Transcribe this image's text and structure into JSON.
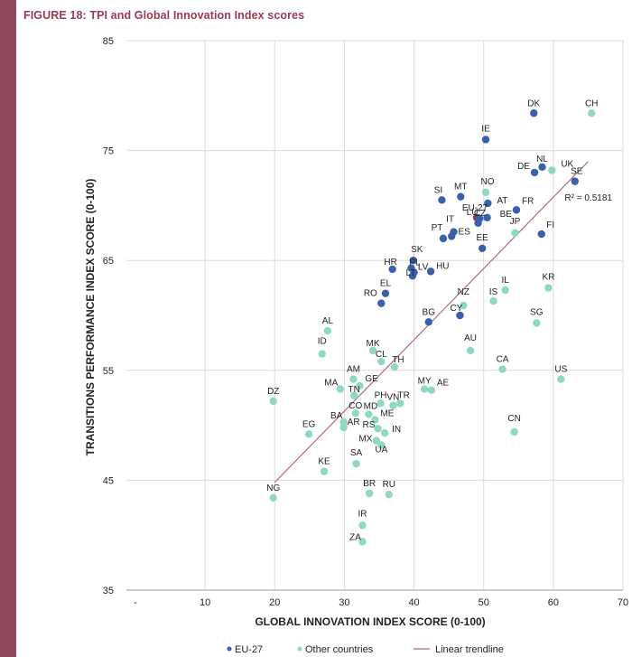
{
  "figure": {
    "title": "FIGURE 18: TPI and Global Innovation Index scores"
  },
  "chart_data": {
    "type": "scatter",
    "xlabel": "GLOBAL INNOVATION INDEX SCORE (0-100)",
    "ylabel": "TRANSITIONS PERFORMANCE INDEX SCORE (0-100)",
    "xlim": [
      0,
      70
    ],
    "ylim": [
      35,
      85
    ],
    "x_ticks": [
      10,
      20,
      30,
      40,
      50,
      60,
      70
    ],
    "x_first_tick_label": "-",
    "y_ticks": [
      35,
      45,
      55,
      65,
      75,
      85
    ],
    "grid": true,
    "legend": [
      "EU-27",
      "Other countries",
      "Linear trendline"
    ],
    "trendline": {
      "x": [
        20,
        65
      ],
      "y": [
        44.8,
        74
      ],
      "label": "R² = 0.5181"
    },
    "colors": {
      "eu": "#3a5fad",
      "other": "#8fd9c0",
      "eu_highlight": "#9c3b4f",
      "trend": "#b36a80"
    },
    "series": [
      {
        "name": "EU-27",
        "points": [
          {
            "label": "DK",
            "x": 57.2,
            "y": 78.4
          },
          {
            "label": "IE",
            "x": 50.3,
            "y": 76.0
          },
          {
            "label": "NL",
            "x": 58.4,
            "y": 73.5
          },
          {
            "label": "DE",
            "x": 57.3,
            "y": 73.0
          },
          {
            "label": "SE",
            "x": 63.1,
            "y": 72.2
          },
          {
            "label": "SI",
            "x": 44.0,
            "y": 70.5
          },
          {
            "label": "MT",
            "x": 46.7,
            "y": 70.8
          },
          {
            "label": "AT",
            "x": 50.6,
            "y": 70.2
          },
          {
            "label": "FR",
            "x": 54.7,
            "y": 69.6
          },
          {
            "label": "EU-27",
            "x": 49.0,
            "y": 68.9,
            "highlight": true
          },
          {
            "label": "LU",
            "x": 49.4,
            "y": 68.8
          },
          {
            "label": "BE",
            "x": 50.5,
            "y": 68.9
          },
          {
            "label": "IT",
            "x": 45.7,
            "y": 67.6
          },
          {
            "label": "CZ",
            "x": 49.2,
            "y": 68.4
          },
          {
            "label": "PT",
            "x": 44.2,
            "y": 67.0
          },
          {
            "label": "ES",
            "x": 45.4,
            "y": 67.2
          },
          {
            "label": "FI",
            "x": 58.3,
            "y": 67.4
          },
          {
            "label": "EE",
            "x": 49.8,
            "y": 66.1
          },
          {
            "label": "SK",
            "x": 39.9,
            "y": 65.0
          },
          {
            "label": "HR",
            "x": 36.9,
            "y": 64.2
          },
          {
            "label": "PL",
            "x": 39.6,
            "y": 64.3
          },
          {
            "label": "LV",
            "x": 40.0,
            "y": 63.9
          },
          {
            "label": "HU",
            "x": 42.4,
            "y": 64.0
          },
          {
            "label": "LT",
            "x": 39.8,
            "y": 63.6
          },
          {
            "label": "EL",
            "x": 35.9,
            "y": 62.0
          },
          {
            "label": "RO",
            "x": 35.3,
            "y": 61.1
          },
          {
            "label": "CY",
            "x": 46.6,
            "y": 60.0
          },
          {
            "label": "BG",
            "x": 42.1,
            "y": 59.4
          }
        ]
      },
      {
        "name": "Other countries",
        "points": [
          {
            "label": "CH",
            "x": 65.5,
            "y": 78.4
          },
          {
            "label": "UK",
            "x": 59.8,
            "y": 73.2
          },
          {
            "label": "NO",
            "x": 50.3,
            "y": 71.2
          },
          {
            "label": "JP",
            "x": 54.5,
            "y": 67.5
          },
          {
            "label": "KR",
            "x": 59.3,
            "y": 62.5
          },
          {
            "label": "IL",
            "x": 53.1,
            "y": 62.3
          },
          {
            "label": "IS",
            "x": 51.4,
            "y": 61.3
          },
          {
            "label": "NZ",
            "x": 47.1,
            "y": 60.9
          },
          {
            "label": "SG",
            "x": 57.6,
            "y": 59.3
          },
          {
            "label": "AL",
            "x": 27.6,
            "y": 58.6
          },
          {
            "label": "AU",
            "x": 48.1,
            "y": 56.8
          },
          {
            "label": "ID",
            "x": 26.8,
            "y": 56.5
          },
          {
            "label": "MK",
            "x": 34.1,
            "y": 56.8
          },
          {
            "label": "CL",
            "x": 35.3,
            "y": 55.8
          },
          {
            "label": "TH",
            "x": 37.2,
            "y": 55.3
          },
          {
            "label": "CA",
            "x": 52.7,
            "y": 55.1
          },
          {
            "label": "US",
            "x": 61.1,
            "y": 54.2
          },
          {
            "label": "AM",
            "x": 31.3,
            "y": 54.2
          },
          {
            "label": "GE",
            "x": 32.2,
            "y": 53.6
          },
          {
            "label": "MA",
            "x": 29.4,
            "y": 53.3
          },
          {
            "label": "MY",
            "x": 41.5,
            "y": 53.3
          },
          {
            "label": "AE",
            "x": 42.5,
            "y": 53.2
          },
          {
            "label": "TN",
            "x": 31.4,
            "y": 52.7
          },
          {
            "label": "DZ",
            "x": 19.8,
            "y": 52.2
          },
          {
            "label": "PH",
            "x": 35.2,
            "y": 52.0
          },
          {
            "label": "VN",
            "x": 37.0,
            "y": 51.8
          },
          {
            "label": "TR",
            "x": 38.0,
            "y": 52.0
          },
          {
            "label": "CO",
            "x": 31.6,
            "y": 51.1
          },
          {
            "label": "MD",
            "x": 33.5,
            "y": 51.0
          },
          {
            "label": "BA",
            "x": 29.9,
            "y": 50.3
          },
          {
            "label": "ME",
            "x": 34.4,
            "y": 50.5
          },
          {
            "label": "AR",
            "x": 29.9,
            "y": 49.8
          },
          {
            "label": "RS",
            "x": 34.8,
            "y": 49.7
          },
          {
            "label": "IN",
            "x": 35.8,
            "y": 49.3
          },
          {
            "label": "CN",
            "x": 54.4,
            "y": 49.4
          },
          {
            "label": "EG",
            "x": 24.9,
            "y": 49.2
          },
          {
            "label": "MX",
            "x": 34.6,
            "y": 48.6
          },
          {
            "label": "UA",
            "x": 35.3,
            "y": 48.2
          },
          {
            "label": "SA",
            "x": 31.7,
            "y": 46.5
          },
          {
            "label": "KE",
            "x": 27.1,
            "y": 45.8
          },
          {
            "label": "BR",
            "x": 33.6,
            "y": 43.8
          },
          {
            "label": "RU",
            "x": 36.4,
            "y": 43.7
          },
          {
            "label": "NG",
            "x": 19.8,
            "y": 43.4
          },
          {
            "label": "IR",
            "x": 32.6,
            "y": 40.9
          },
          {
            "label": "ZA",
            "x": 32.6,
            "y": 39.4
          }
        ]
      }
    ]
  }
}
